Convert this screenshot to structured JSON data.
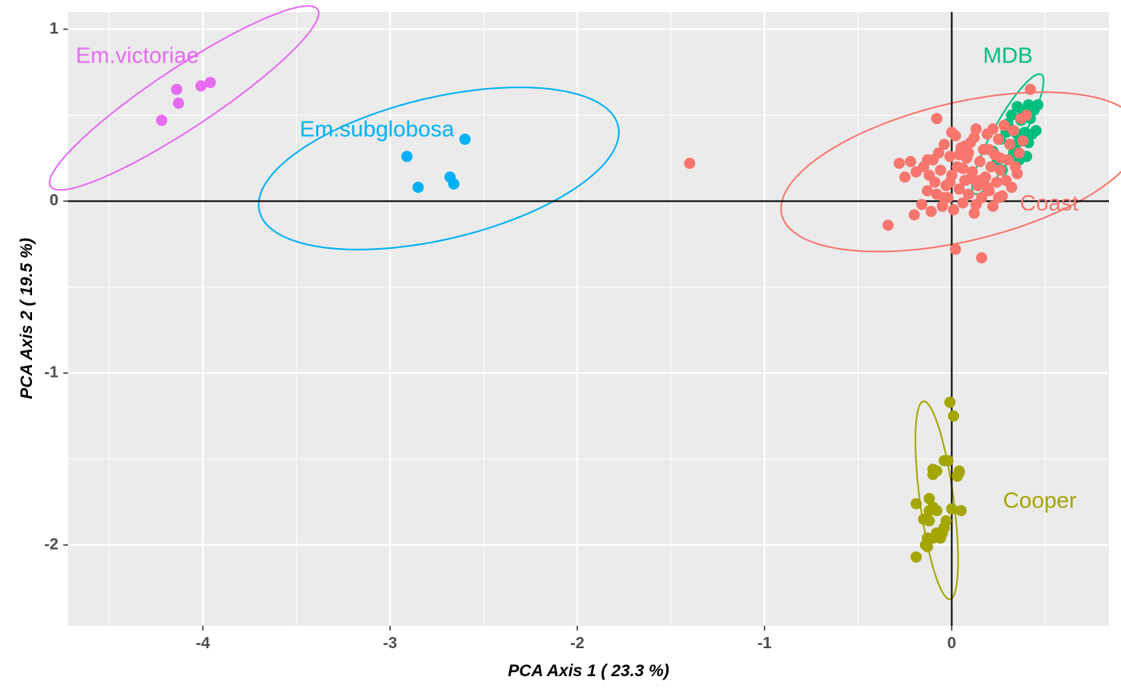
{
  "chart_data": {
    "type": "scatter",
    "title": "",
    "xlabel": "PCA Axis 1 ( 23.3 %)",
    "ylabel": "PCA Axis 2 ( 19.5 %)",
    "xlim": [
      -4.72,
      0.84
    ],
    "ylim": [
      -2.47,
      1.1
    ],
    "x_ticks": [
      -4,
      -3,
      -2,
      -1,
      0
    ],
    "x_tick_labels": [
      "-4",
      "-3",
      "-2",
      "-1",
      "0"
    ],
    "y_ticks": [
      -2,
      -1,
      0,
      1
    ],
    "y_tick_labels": [
      "-2",
      "-1",
      "0",
      "1"
    ],
    "grid": true,
    "reference_lines": {
      "x": 0,
      "y": 0
    },
    "legend": "none",
    "colors": {
      "panel_background": "#ebebeb",
      "grid": "#ffffff",
      "reference_line": "#000000"
    },
    "series": [
      {
        "name": "Em.victoriae",
        "color": "#e76bf3",
        "label_pos": [
          -4.35,
          0.84
        ],
        "ellipse": {
          "cx": -4.1,
          "cy": 0.6,
          "rx": 0.88,
          "ry": 0.17,
          "angle_deg": 36
        },
        "points": [
          [
            -4.22,
            0.47
          ],
          [
            -4.14,
            0.65
          ],
          [
            -4.13,
            0.57
          ],
          [
            -4.01,
            0.67
          ],
          [
            -3.96,
            0.69
          ]
        ]
      },
      {
        "name": "Em.subglobosa",
        "color": "#00b0f6",
        "label_pos": [
          -3.07,
          0.41
        ],
        "ellipse": {
          "cx": -2.74,
          "cy": 0.19,
          "rx": 0.99,
          "ry": 0.41,
          "angle_deg": 15
        },
        "points": [
          [
            -2.91,
            0.26
          ],
          [
            -2.85,
            0.08
          ],
          [
            -2.68,
            0.14
          ],
          [
            -2.66,
            0.1
          ],
          [
            -2.6,
            0.36
          ]
        ]
      },
      {
        "name": "MDB",
        "color": "#00bf7d",
        "label_pos": [
          0.3,
          0.84
        ],
        "ellipse": {
          "cx": 0.3,
          "cy": 0.39,
          "rx": 0.39,
          "ry": 0.08,
          "angle_deg": 63
        },
        "points": [
          [
            0.22,
            0.29
          ],
          [
            0.24,
            0.22
          ],
          [
            0.26,
            0.36
          ],
          [
            0.3,
            0.45
          ],
          [
            0.32,
            0.5
          ],
          [
            0.33,
            0.28
          ],
          [
            0.34,
            0.4
          ],
          [
            0.35,
            0.55
          ],
          [
            0.36,
            0.24
          ],
          [
            0.37,
            0.47
          ],
          [
            0.38,
            0.52
          ],
          [
            0.39,
            0.4
          ],
          [
            0.4,
            0.26
          ],
          [
            0.41,
            0.56
          ],
          [
            0.42,
            0.48
          ],
          [
            0.43,
            0.39
          ],
          [
            0.44,
            0.53
          ],
          [
            0.45,
            0.41
          ],
          [
            0.46,
            0.56
          ],
          [
            0.31,
            0.33
          ],
          [
            0.29,
            0.4
          ],
          [
            0.36,
            0.36
          ],
          [
            0.41,
            0.34
          ],
          [
            0.27,
            0.18
          ],
          [
            0.34,
            0.31
          ]
        ]
      },
      {
        "name": "Coast",
        "color": "#f8766d",
        "label_pos": [
          0.52,
          -0.02
        ],
        "ellipse": {
          "cx": 0.05,
          "cy": 0.17,
          "rx": 0.99,
          "ry": 0.4,
          "angle_deg": 15
        },
        "points": [
          [
            -0.34,
            -0.14
          ],
          [
            -0.28,
            0.22
          ],
          [
            -0.25,
            0.14
          ],
          [
            -0.22,
            0.23
          ],
          [
            -0.2,
            -0.08
          ],
          [
            -0.19,
            0.17
          ],
          [
            -0.16,
            -0.02
          ],
          [
            -0.15,
            0.2
          ],
          [
            -0.13,
            0.06
          ],
          [
            -0.12,
            0.15
          ],
          [
            -0.11,
            -0.06
          ],
          [
            -0.1,
            0.24
          ],
          [
            -0.09,
            0.11
          ],
          [
            -0.08,
            0.04
          ],
          [
            -0.07,
            0.28
          ],
          [
            -0.06,
            0.18
          ],
          [
            -0.05,
            -0.03
          ],
          [
            -0.04,
            0.33
          ],
          [
            -0.03,
            0.09
          ],
          [
            -0.02,
            0.02
          ],
          [
            -0.01,
            0.26
          ],
          [
            0.0,
            0.15
          ],
          [
            0.01,
            -0.05
          ],
          [
            0.02,
            0.38
          ],
          [
            0.03,
            0.2
          ],
          [
            0.04,
            0.07
          ],
          [
            0.05,
            0.31
          ],
          [
            0.06,
            -0.01
          ],
          [
            0.07,
            0.12
          ],
          [
            0.08,
            0.25
          ],
          [
            0.09,
            0.04
          ],
          [
            0.1,
            0.34
          ],
          [
            0.11,
            0.17
          ],
          [
            0.12,
            -0.07
          ],
          [
            0.13,
            0.42
          ],
          [
            0.14,
            0.09
          ],
          [
            0.15,
            0.23
          ],
          [
            0.16,
            0.02
          ],
          [
            0.17,
            0.3
          ],
          [
            0.18,
            0.14
          ],
          [
            0.19,
            0.39
          ],
          [
            0.2,
            0.06
          ],
          [
            0.21,
            0.2
          ],
          [
            0.22,
            -0.03
          ],
          [
            0.23,
            0.27
          ],
          [
            0.24,
            0.11
          ],
          [
            0.25,
            0.36
          ],
          [
            0.26,
            0.18
          ],
          [
            0.27,
            0.03
          ],
          [
            0.28,
            0.44
          ],
          [
            0.29,
            0.12
          ],
          [
            0.3,
            0.24
          ],
          [
            0.31,
            0.33
          ],
          [
            0.32,
            0.08
          ],
          [
            0.33,
            0.41
          ],
          [
            0.34,
            0.2
          ],
          [
            0.35,
            0.16
          ],
          [
            0.36,
            0.28
          ],
          [
            0.37,
            0.48
          ],
          [
            0.38,
            0.35
          ],
          [
            0.4,
            0.5
          ],
          [
            0.42,
            0.65
          ],
          [
            -0.08,
            0.48
          ],
          [
            0.0,
            0.4
          ],
          [
            0.12,
            0.37
          ],
          [
            0.22,
            0.42
          ],
          [
            0.02,
            -0.28
          ],
          [
            0.16,
            -0.33
          ],
          [
            -0.01,
            0.11
          ],
          [
            0.06,
            0.19
          ],
          [
            0.09,
            0.28
          ],
          [
            0.19,
            0.08
          ],
          [
            0.25,
            0.02
          ],
          [
            0.13,
            -0.02
          ],
          [
            -0.13,
            0.24
          ],
          [
            -0.04,
            0.02
          ],
          [
            0.07,
            0.32
          ],
          [
            0.15,
            0.12
          ],
          [
            0.2,
            0.3
          ],
          [
            0.26,
            0.25
          ],
          [
            0.1,
            0.13
          ],
          [
            0.04,
            0.27
          ],
          [
            -1.4,
            0.22
          ]
        ]
      },
      {
        "name": "Cooper",
        "color": "#a3a500",
        "label_pos": [
          0.47,
          -1.75
        ],
        "ellipse": {
          "cx": -0.08,
          "cy": -1.74,
          "rx": 0.58,
          "ry": 0.09,
          "angle_deg": -83
        },
        "points": [
          [
            -0.01,
            -1.17
          ],
          [
            0.01,
            -1.25
          ],
          [
            -0.02,
            -1.51
          ],
          [
            -0.04,
            -1.51
          ],
          [
            -0.1,
            -1.56
          ],
          [
            -0.08,
            -1.57
          ],
          [
            -0.1,
            -1.59
          ],
          [
            0.04,
            -1.57
          ],
          [
            0.03,
            -1.6
          ],
          [
            0.04,
            -1.58
          ],
          [
            -0.19,
            -1.76
          ],
          [
            -0.12,
            -1.73
          ],
          [
            -0.1,
            -1.78
          ],
          [
            -0.12,
            -1.8
          ],
          [
            0.0,
            -1.79
          ],
          [
            0.05,
            -1.8
          ],
          [
            -0.08,
            -1.8
          ],
          [
            -0.15,
            -1.85
          ],
          [
            -0.12,
            -1.86
          ],
          [
            -0.03,
            -1.86
          ],
          [
            -0.04,
            -1.9
          ],
          [
            -0.08,
            -1.93
          ],
          [
            -0.05,
            -1.93
          ],
          [
            -0.1,
            -1.96
          ],
          [
            -0.13,
            -1.96
          ],
          [
            -0.06,
            -1.96
          ],
          [
            -0.13,
            -2.01
          ],
          [
            -0.14,
            -2.0
          ],
          [
            -0.19,
            -2.07
          ]
        ]
      }
    ]
  }
}
